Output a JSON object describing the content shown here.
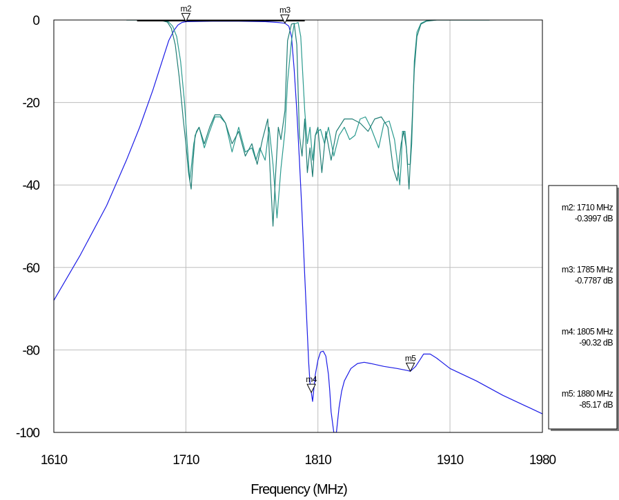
{
  "chart_data": {
    "type": "line",
    "title": "",
    "xlabel": "Frequency (MHz)",
    "ylabel": "",
    "xlim": [
      1610,
      1980
    ],
    "ylim": [
      -100,
      0
    ],
    "x_ticks": [
      "1610",
      "1710",
      "1810",
      "1910",
      "1980"
    ],
    "y_ticks": [
      "0",
      "-20",
      "-40",
      "-60",
      "-80",
      "-100"
    ],
    "x_tick_values": [
      1610,
      1710,
      1810,
      1910,
      1980
    ],
    "y_tick_values": [
      0,
      -20,
      -40,
      -60,
      -80,
      -100
    ],
    "grid": true,
    "colors": {
      "s21": "#1a1ae6",
      "s11": "#2a9a8e",
      "s22": "#1f7d74",
      "flat": "#000000",
      "legend_shadow": "#808080"
    },
    "series": [
      {
        "key": "s21",
        "x": [
          1610,
          1630,
          1650,
          1665,
          1675,
          1685,
          1692,
          1697,
          1701,
          1704,
          1707,
          1710,
          1730,
          1750,
          1770,
          1780,
          1785,
          1788,
          1790,
          1792,
          1794,
          1796,
          1798,
          1800,
          1802,
          1803,
          1804,
          1805,
          1806,
          1808,
          1810,
          1812,
          1814,
          1816,
          1818,
          1819,
          1820,
          1822,
          1823,
          1824,
          1826,
          1828,
          1830,
          1835,
          1840,
          1845,
          1850,
          1860,
          1870,
          1878,
          1880,
          1884,
          1888,
          1890,
          1895,
          1900,
          1910,
          1930,
          1950,
          1970,
          1980
        ],
        "y": [
          -68,
          -57,
          -45,
          -34,
          -26,
          -17,
          -10,
          -5,
          -2.5,
          -1.2,
          -0.6,
          -0.4,
          -0.3,
          -0.3,
          -0.4,
          -0.6,
          -0.78,
          -1.5,
          -4,
          -12,
          -22,
          -34,
          -47,
          -62,
          -76,
          -83,
          -88,
          -90.3,
          -92.5,
          -86,
          -82.5,
          -80.5,
          -80.3,
          -81.5,
          -86,
          -90,
          -95,
          -100,
          -100,
          -100,
          -94,
          -90,
          -87.5,
          -84.5,
          -83.3,
          -83,
          -83.3,
          -84,
          -84.5,
          -85,
          -85.17,
          -84,
          -82,
          -81,
          -81,
          -82,
          -84.5,
          -87.5,
          -91,
          -94,
          -95.5
        ]
      },
      {
        "key": "s11",
        "x": [
          1665,
          1690,
          1697,
          1700,
          1703,
          1706,
          1709,
          1711,
          1713,
          1716,
          1718,
          1720,
          1724,
          1728,
          1732,
          1736,
          1740,
          1745,
          1750,
          1755,
          1760,
          1763,
          1766,
          1770,
          1773,
          1776,
          1779,
          1782,
          1785,
          1787,
          1790,
          1792,
          1795,
          1797,
          1800,
          1802,
          1804,
          1806,
          1808,
          1810,
          1812,
          1815,
          1818,
          1822,
          1826,
          1830,
          1834,
          1838,
          1842,
          1846,
          1850,
          1856,
          1860,
          1864,
          1868,
          1870,
          1872,
          1873,
          1874,
          1876,
          1878,
          1880,
          1881,
          1882,
          1883,
          1885,
          1888,
          1892,
          1900,
          1940
        ],
        "y": [
          0,
          0,
          -0.5,
          -1.5,
          -4,
          -10,
          -20,
          -30,
          -39,
          -30,
          -27,
          -26,
          -31,
          -27,
          -23.5,
          -23.5,
          -25,
          -32,
          -26,
          -32,
          -31,
          -34,
          -31,
          -34,
          -26,
          -35,
          -48,
          -36,
          -27,
          -15,
          -5,
          -1,
          -0.6,
          -4,
          -22,
          -30,
          -26,
          -34,
          -28,
          -27,
          -26.5,
          -30,
          -26,
          -33,
          -28,
          -26,
          -29,
          -28,
          -24,
          -23.5,
          -26,
          -31,
          -25,
          -24.5,
          -29,
          -34,
          -40,
          -35,
          -27,
          -27,
          -35,
          -35,
          -30,
          -20,
          -10,
          -3,
          -0.8,
          -0.2,
          0,
          0
        ]
      },
      {
        "key": "s22",
        "x": [
          1665,
          1690,
          1696,
          1699,
          1702,
          1705,
          1708,
          1710,
          1712,
          1714,
          1715,
          1717,
          1720,
          1724,
          1728,
          1732,
          1736,
          1740,
          1745,
          1750,
          1755,
          1760,
          1764,
          1768,
          1772,
          1774,
          1776,
          1778,
          1780,
          1782,
          1785,
          1787,
          1790,
          1792,
          1794,
          1796,
          1798,
          1800,
          1802,
          1804,
          1806,
          1808,
          1810,
          1813,
          1816,
          1820,
          1824,
          1830,
          1836,
          1842,
          1848,
          1853,
          1858,
          1863,
          1867,
          1870,
          1873,
          1875,
          1877,
          1879,
          1881,
          1883,
          1885,
          1888,
          1892,
          1900,
          1940
        ],
        "y": [
          0,
          0,
          -0.5,
          -2,
          -6,
          -14,
          -24,
          -30,
          -37,
          -41,
          -36,
          -28,
          -26,
          -30,
          -26,
          -23,
          -23,
          -25,
          -30,
          -27,
          -33,
          -30,
          -35,
          -29,
          -24,
          -38,
          -50,
          -37,
          -26,
          -29,
          -22,
          -5,
          -1,
          -0.8,
          -6,
          -28,
          -33,
          -24,
          -37,
          -31,
          -38,
          -28,
          -26,
          -37,
          -27,
          -34,
          -27,
          -24,
          -24,
          -25,
          -27,
          -24,
          -23.5,
          -26,
          -36,
          -39,
          -30,
          -27,
          -31,
          -41,
          -27,
          -12,
          -4,
          -1,
          -0.3,
          0,
          0
        ]
      },
      {
        "key": "flat",
        "x": [
          1673,
          1800
        ],
        "y": [
          -0.2,
          -0.2
        ]
      }
    ],
    "markers": [
      {
        "name": "m2",
        "x": 1710,
        "y": -0.3997
      },
      {
        "name": "m3",
        "x": 1785,
        "y": -0.7787
      },
      {
        "name": "m4",
        "x": 1805,
        "y": -90.32
      },
      {
        "name": "m5",
        "x": 1880,
        "y": -85.17
      }
    ],
    "legend": {
      "position": "right",
      "entries": [
        {
          "line1": "m2: 1710 MHz",
          "line2": "-0.3997 dB"
        },
        {
          "line1": "m3: 1785 MHz",
          "line2": "-0.7787 dB"
        },
        {
          "line1": "m4: 1805 MHz",
          "line2": "-90.32 dB"
        },
        {
          "line1": "m5: 1880 MHz",
          "line2": "-85.17 dB"
        }
      ]
    }
  }
}
